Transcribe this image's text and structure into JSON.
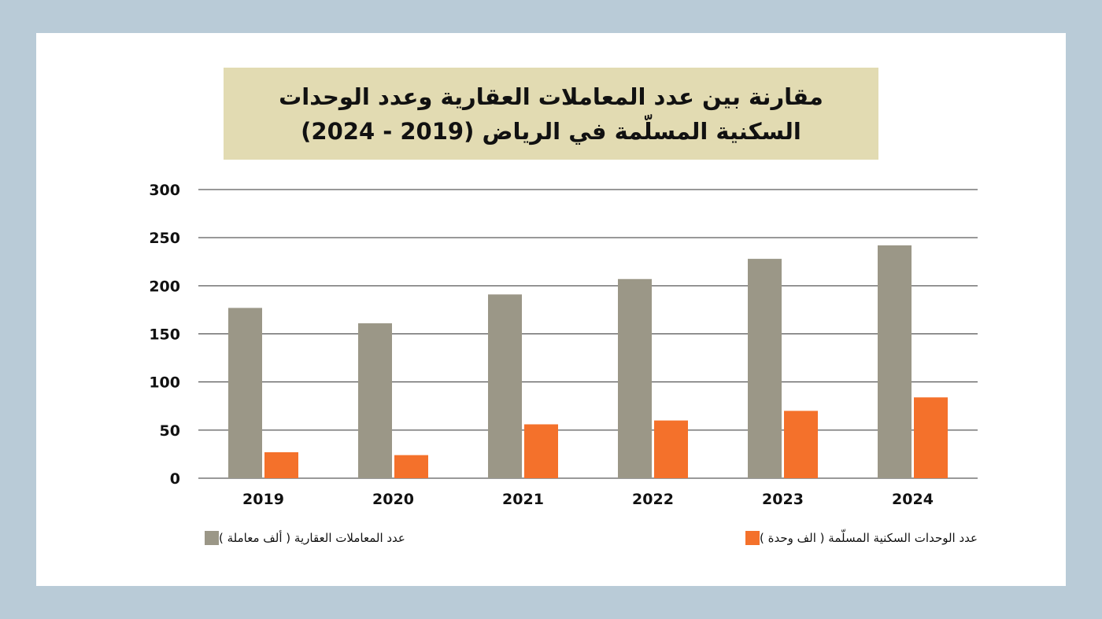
{
  "colors": {
    "background": "#b9cbd7",
    "card": "#ffffff",
    "title_box": "#e2dbb2",
    "gridline": "#333333",
    "series_transactions": "#9b9787",
    "series_units": "#f4712b"
  },
  "chart_data": {
    "type": "bar",
    "title": "مقارنة بين عدد المعاملات العقارية وعدد الوحدات السكنية المسلّمة في الرياض (2019 - 2024)",
    "categories": [
      "2019",
      "2020",
      "2021",
      "2022",
      "2023",
      "2024"
    ],
    "series": [
      {
        "name": "عدد المعاملات العقارية ( ألف معاملة )",
        "color": "#9b9787",
        "values": [
          177,
          161,
          191,
          207,
          228,
          242
        ]
      },
      {
        "name": "عدد الوحدات السكنية المسلّمة ( الف وحدة )",
        "color": "#f4712b",
        "values": [
          27,
          24,
          56,
          60,
          70,
          84
        ]
      }
    ],
    "yticks": [
      "0",
      "50",
      "100",
      "150",
      "200",
      "250",
      "300"
    ],
    "ylim": [
      0,
      300
    ],
    "grid": true,
    "legend_position": "bottom"
  }
}
